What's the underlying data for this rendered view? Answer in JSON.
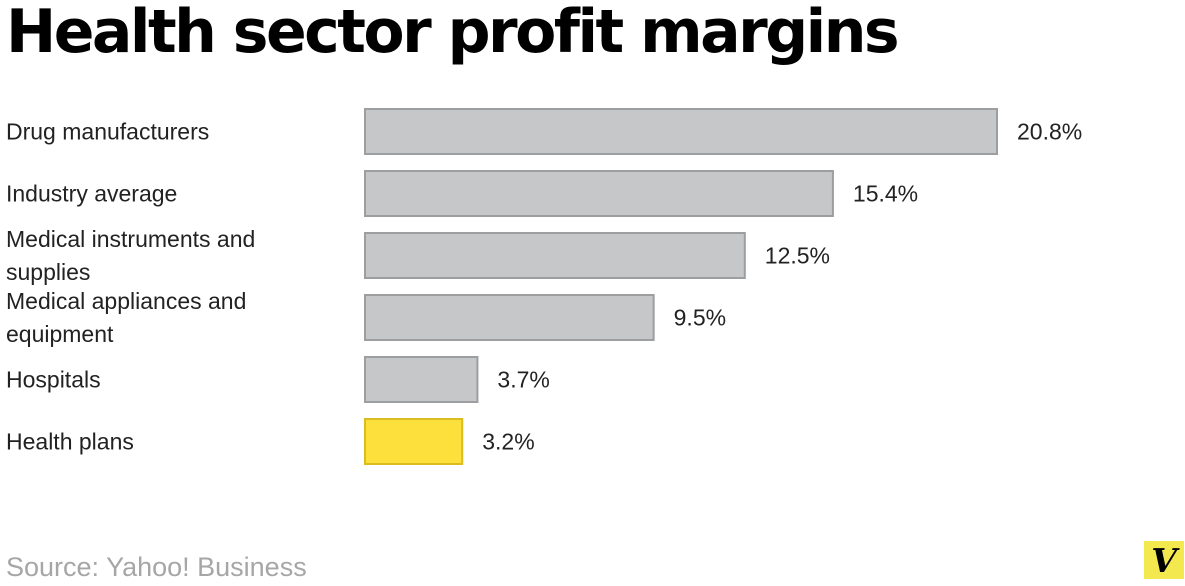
{
  "chart_data": {
    "type": "bar",
    "orientation": "horizontal",
    "title": "Health sector profit margins",
    "categories": [
      "Drug manufacturers",
      "Industry average",
      "Medical instruments and supplies",
      "Medical appliances and equipment",
      "Hospitals",
      "Health plans"
    ],
    "values": [
      20.8,
      15.4,
      12.5,
      9.5,
      3.7,
      3.2
    ],
    "value_labels": [
      "20.8%",
      "15.4%",
      "12.5%",
      "9.5%",
      "3.7%",
      "3.2%"
    ],
    "highlight_index": 5,
    "xlabel": "",
    "ylabel": "",
    "xlim": [
      0,
      20.8
    ],
    "grid": false,
    "legend": "none"
  },
  "colors": {
    "bar_fill": "#c6c7c9",
    "bar_stroke": "#9d9ea0",
    "highlight_fill": "#fde03c",
    "highlight_stroke": "#d9bd1f",
    "label_text": "#222222",
    "source_text": "#a6a6a6",
    "logo_background": "#f4e84f"
  },
  "source": "Source: Yahoo! Business",
  "logo_letter": "V"
}
